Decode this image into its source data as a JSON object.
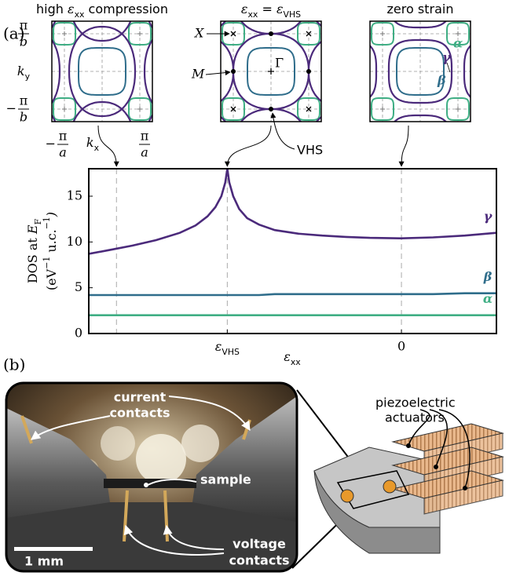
{
  "panel_labels": {
    "a": "(a)",
    "b": "(b)"
  },
  "fermi_surfaces": {
    "titles": [
      [
        "high ",
        "ε",
        {
          "sub": "xx"
        },
        " compression"
      ],
      [
        "ε",
        {
          "sub": "xx"
        },
        " = ",
        "ε",
        {
          "sub": "VHS"
        }
      ],
      [
        "zero strain"
      ]
    ],
    "ky_max": {
      "num": "π",
      "den": "b"
    },
    "ky": [
      "k",
      {
        "sub": "y"
      }
    ],
    "ky_min": {
      "sign": "−",
      "num": "π",
      "den": "b"
    },
    "kx_min": {
      "sign": "−",
      "num": "π",
      "den": "a"
    },
    "kx": [
      "k",
      {
        "sub": "x"
      }
    ],
    "kx_max": {
      "num": "π",
      "den": "a"
    },
    "points": {
      "X": "X",
      "M": "M",
      "Gamma": "Γ"
    },
    "vhs": "VHS"
  },
  "chart_data": {
    "type": "line",
    "x": [
      -0.79,
      -0.74,
      -0.68,
      -0.62,
      -0.56,
      -0.52,
      -0.49,
      -0.47,
      -0.455,
      -0.445,
      -0.44,
      -0.435,
      -0.425,
      -0.41,
      -0.39,
      -0.36,
      -0.32,
      -0.26,
      -0.2,
      -0.14,
      -0.08,
      0,
      0.08,
      0.16,
      0.24
    ],
    "series": [
      {
        "name": "γ",
        "color": "#4b2a7b",
        "values": [
          8.7,
          9.1,
          9.6,
          10.2,
          11.0,
          11.8,
          12.8,
          13.8,
          15.0,
          16.5,
          18,
          16.5,
          15.0,
          13.6,
          12.6,
          11.9,
          11.3,
          10.9,
          10.7,
          10.55,
          10.45,
          10.4,
          10.5,
          10.7,
          11.0
        ]
      },
      {
        "name": "β",
        "color": "#2f6d8b",
        "values": [
          4.2,
          4.2,
          4.2,
          4.2,
          4.2,
          4.2,
          4.2,
          4.2,
          4.2,
          4.2,
          4.2,
          4.2,
          4.2,
          4.2,
          4.2,
          4.2,
          4.3,
          4.3,
          4.3,
          4.3,
          4.3,
          4.3,
          4.3,
          4.4,
          4.4
        ]
      },
      {
        "name": "α",
        "color": "#3fae84",
        "values": [
          2.0,
          2.0,
          2.0,
          2.0,
          2.0,
          2.0,
          2.0,
          2.0,
          2.0,
          2.0,
          2.0,
          2.0,
          2.0,
          2.0,
          2.0,
          2.0,
          2.0,
          2.0,
          2.0,
          2.0,
          2.0,
          2.0,
          2.0,
          2.0,
          2.0
        ]
      }
    ],
    "xlim": [
      -0.79,
      0.24
    ],
    "ylim": [
      0,
      18
    ],
    "xticks": [
      {
        "value": -0.44,
        "label": [
          "ε",
          {
            "sub": "VHS"
          }
        ]
      },
      0
    ],
    "yticks": [
      0,
      5,
      10,
      15
    ],
    "vlines": [
      -0.72,
      -0.44,
      0
    ],
    "xlabel": [
      "ε",
      {
        "sub": "xx"
      }
    ],
    "ylabel": [
      [
        "DOS at ",
        "E",
        {
          "sub": "F"
        }
      ],
      [
        "(eV",
        {
          "sup": "−1"
        },
        " u.c.",
        {
          "sup": "−1"
        },
        ")"
      ]
    ]
  },
  "photo": {
    "current_contacts": [
      "current",
      "contacts"
    ],
    "sample": "sample",
    "voltage_contacts": [
      "voltage",
      "contacts"
    ],
    "scale_bar": "1 mm"
  },
  "schematic": {
    "actuators": [
      "piezoelectric",
      "actuators"
    ]
  }
}
